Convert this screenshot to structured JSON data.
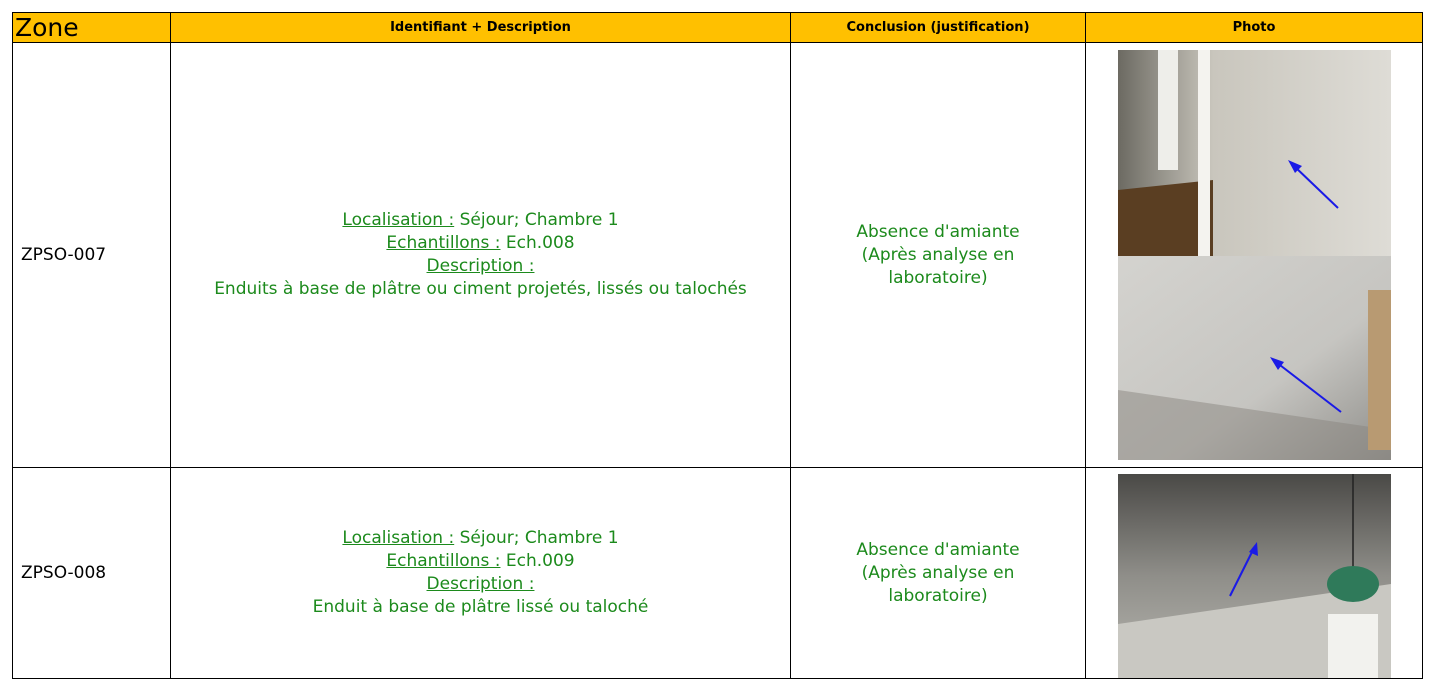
{
  "header": [
    "Zone",
    "Identifiant + Description",
    "Conclusion (justification)",
    "Photo"
  ],
  "rows": [
    {
      "zone": "ZPSO-007",
      "localisation_label": "Localisation :",
      "localisation": "Séjour; Chambre 1",
      "echantillons_label": "Echantillons :",
      "echantillons": "Ech.008",
      "description_label": "Description :",
      "description": "Enduits à base de plâtre ou ciment projetés, lissés ou talochés",
      "conclusion": "Absence d'amiante",
      "justification": "(Après analyse en laboratoire)"
    },
    {
      "zone": "ZPSO-008",
      "localisation_label": "Localisation :",
      "localisation": "Séjour; Chambre 1",
      "echantillons_label": "Echantillons :",
      "echantillons": "Ech.009",
      "description_label": "Description :",
      "description": "Enduit à base de plâtre lissé ou taloché",
      "conclusion": "Absence d'amiante",
      "justification": "(Après analyse en laboratoire)"
    }
  ]
}
